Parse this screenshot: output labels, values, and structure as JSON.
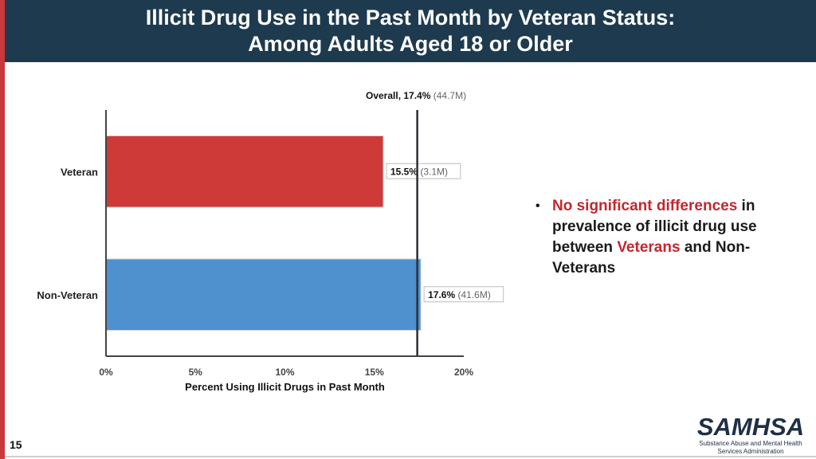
{
  "header": {
    "title_line1": "Illicit Drug Use in the Past Month by Veteran Status:",
    "title_line2": "Among Adults Aged 18 or Older"
  },
  "chart_data": {
    "type": "bar",
    "orientation": "horizontal",
    "categories": [
      "Veteran",
      "Non-Veteran"
    ],
    "values": [
      15.5,
      17.6
    ],
    "value_labels": [
      "15.5%",
      "17.6%"
    ],
    "count_labels": [
      "(3.1M)",
      "(41.6M)"
    ],
    "colors": [
      "#cd3a37",
      "#4f90cf"
    ],
    "xlabel": "Percent Using Illicit Drugs in Past Month",
    "xlim": [
      0,
      20
    ],
    "xticks": [
      0,
      5,
      10,
      15,
      20
    ],
    "xtick_labels": [
      "0%",
      "5%",
      "10%",
      "15%",
      "20%"
    ],
    "reference_line": {
      "value": 17.4,
      "label": "Overall, 17.4%",
      "count_label": "(44.7M)"
    }
  },
  "bullet": {
    "highlight1": "No significant differences",
    "text1": " in prevalence of illicit drug use between ",
    "highlight2": "Veterans",
    "text2": " and Non-Veterans"
  },
  "footer": {
    "page_number": "15",
    "logo_word": "SAMHSA",
    "logo_line1": "Substance Abuse and Mental Health",
    "logo_line2": "Services Administration"
  }
}
